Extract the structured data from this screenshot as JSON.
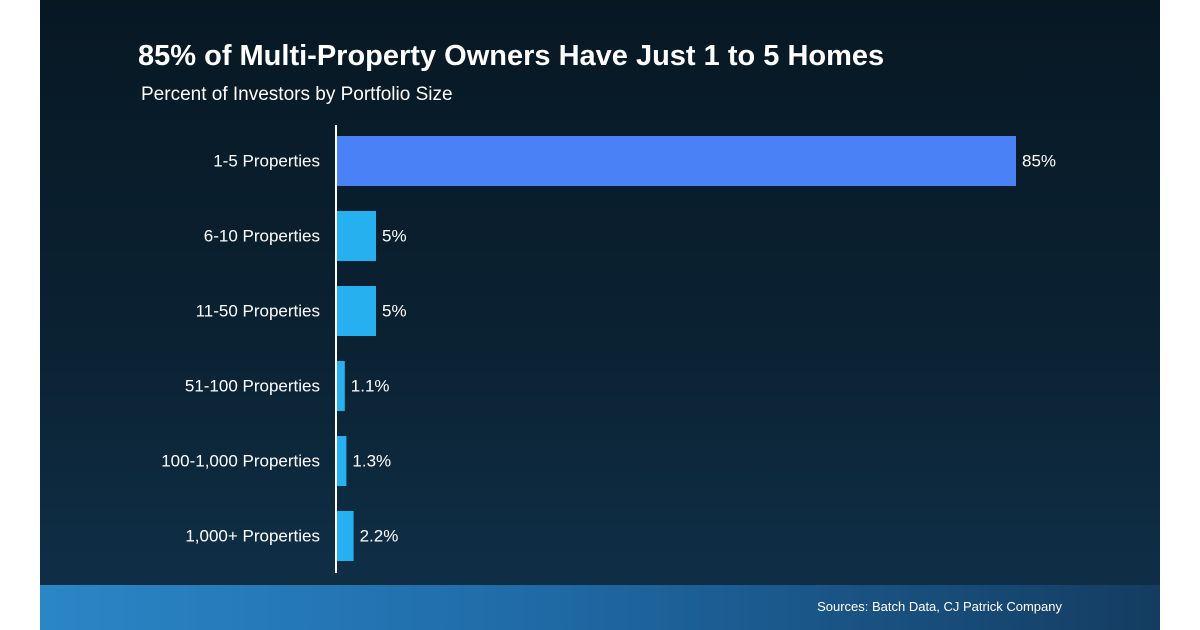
{
  "chart_data": {
    "type": "bar",
    "orientation": "horizontal",
    "title": "85% of Multi-Property Owners Have Just 1 to 5 Homes",
    "subtitle": "Percent of Investors by Portfolio Size",
    "categories": [
      "1-5 Properties",
      "6-10 Properties",
      "11-50 Properties",
      "51-100 Properties",
      "100-1,000 Properties",
      "1,000+ Properties"
    ],
    "values": [
      85,
      5,
      5,
      1.1,
      1.3,
      2.2
    ],
    "value_labels": [
      "85%",
      "5%",
      "5%",
      "1.1%",
      "1.3%",
      "2.2%"
    ],
    "xlim": [
      0,
      85
    ],
    "grid": false,
    "colors": {
      "highlight": "#4a82f5",
      "bar": "#27b0f0"
    }
  },
  "footer": {
    "source": "Sources: Batch Data, CJ Patrick Company"
  }
}
